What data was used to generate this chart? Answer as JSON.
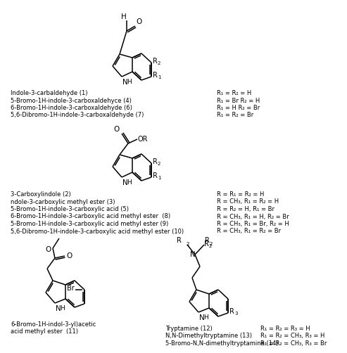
{
  "bg_color": "#ffffff",
  "fig_width": 4.74,
  "fig_height": 4.81,
  "section1_names": [
    [
      "Indole-3-carbaldehyde (",
      "1",
      ")"
    ],
    [
      "5-Bromo-1",
      "H",
      "-indole-3-carboxaldehyce (",
      "4",
      ")"
    ],
    [
      "6-Bromo-1",
      "H",
      "-indole-3-carboxaldehyde (",
      "6",
      ")"
    ],
    [
      "5,6-Dibromo-1",
      "H",
      "-indole-3-carboxaldehyde (",
      "7",
      ")"
    ]
  ],
  "section1_r": [
    "R₁ = R₂ = H",
    "R₁ = Br R₂ = H",
    "R₁ = H R₂ = Br",
    "R₁ = R₂ = Br"
  ],
  "section2_names": [
    [
      "3-Carboxylindole (",
      "2",
      ")"
    ],
    [
      "ndole-3-carboxylic methyl ester (",
      "3",
      ")"
    ],
    [
      "5-Bromo-1",
      "H",
      "-indole-3-carboxylic acid (",
      "5",
      ")"
    ],
    [
      "6-Bromo-1",
      "H",
      "-indole-3-carboxylic acid methyl ester  (",
      "8",
      ")"
    ],
    [
      "5-Bromo-1H-indole-3-carboxylic acid methyl ester (",
      "9",
      ")"
    ],
    [
      "5,6-D",
      "i",
      "bromo-1",
      "H",
      "-indole-3-carboxylic acid methyl ester (",
      "10",
      ")"
    ]
  ],
  "section2_r": [
    "R = R₁ = R₂ = H",
    "R = CH₃, R₁ = R₂ = H",
    "R = R₂ = H, R₁ = Br",
    "R = CH₃, R₁ = H, R₂ = Br",
    "R = CH₃, R₁ = Br, R₂ = H",
    "R = CH₃, R₁ = R₂ = Br"
  ],
  "section3_left": [
    "6-Bromo-1H-indol-3-yl)acetic",
    "acid methyl ester  (11)"
  ],
  "section3_mid": [
    "Tryptamine (12)",
    "N,N-Dimethyltryptamine (13)",
    "5-Bromo-N,N-dimethyltryptamine (14)"
  ],
  "section3_mid_bold": [
    "12",
    "13",
    "14"
  ],
  "section3_right": [
    "R₁ = R₂ = R₃ = H",
    "R₁ = R₂ = CH₃, R₃ = H",
    "R₁ = R₂ = CH₃, R₃ = Br"
  ]
}
